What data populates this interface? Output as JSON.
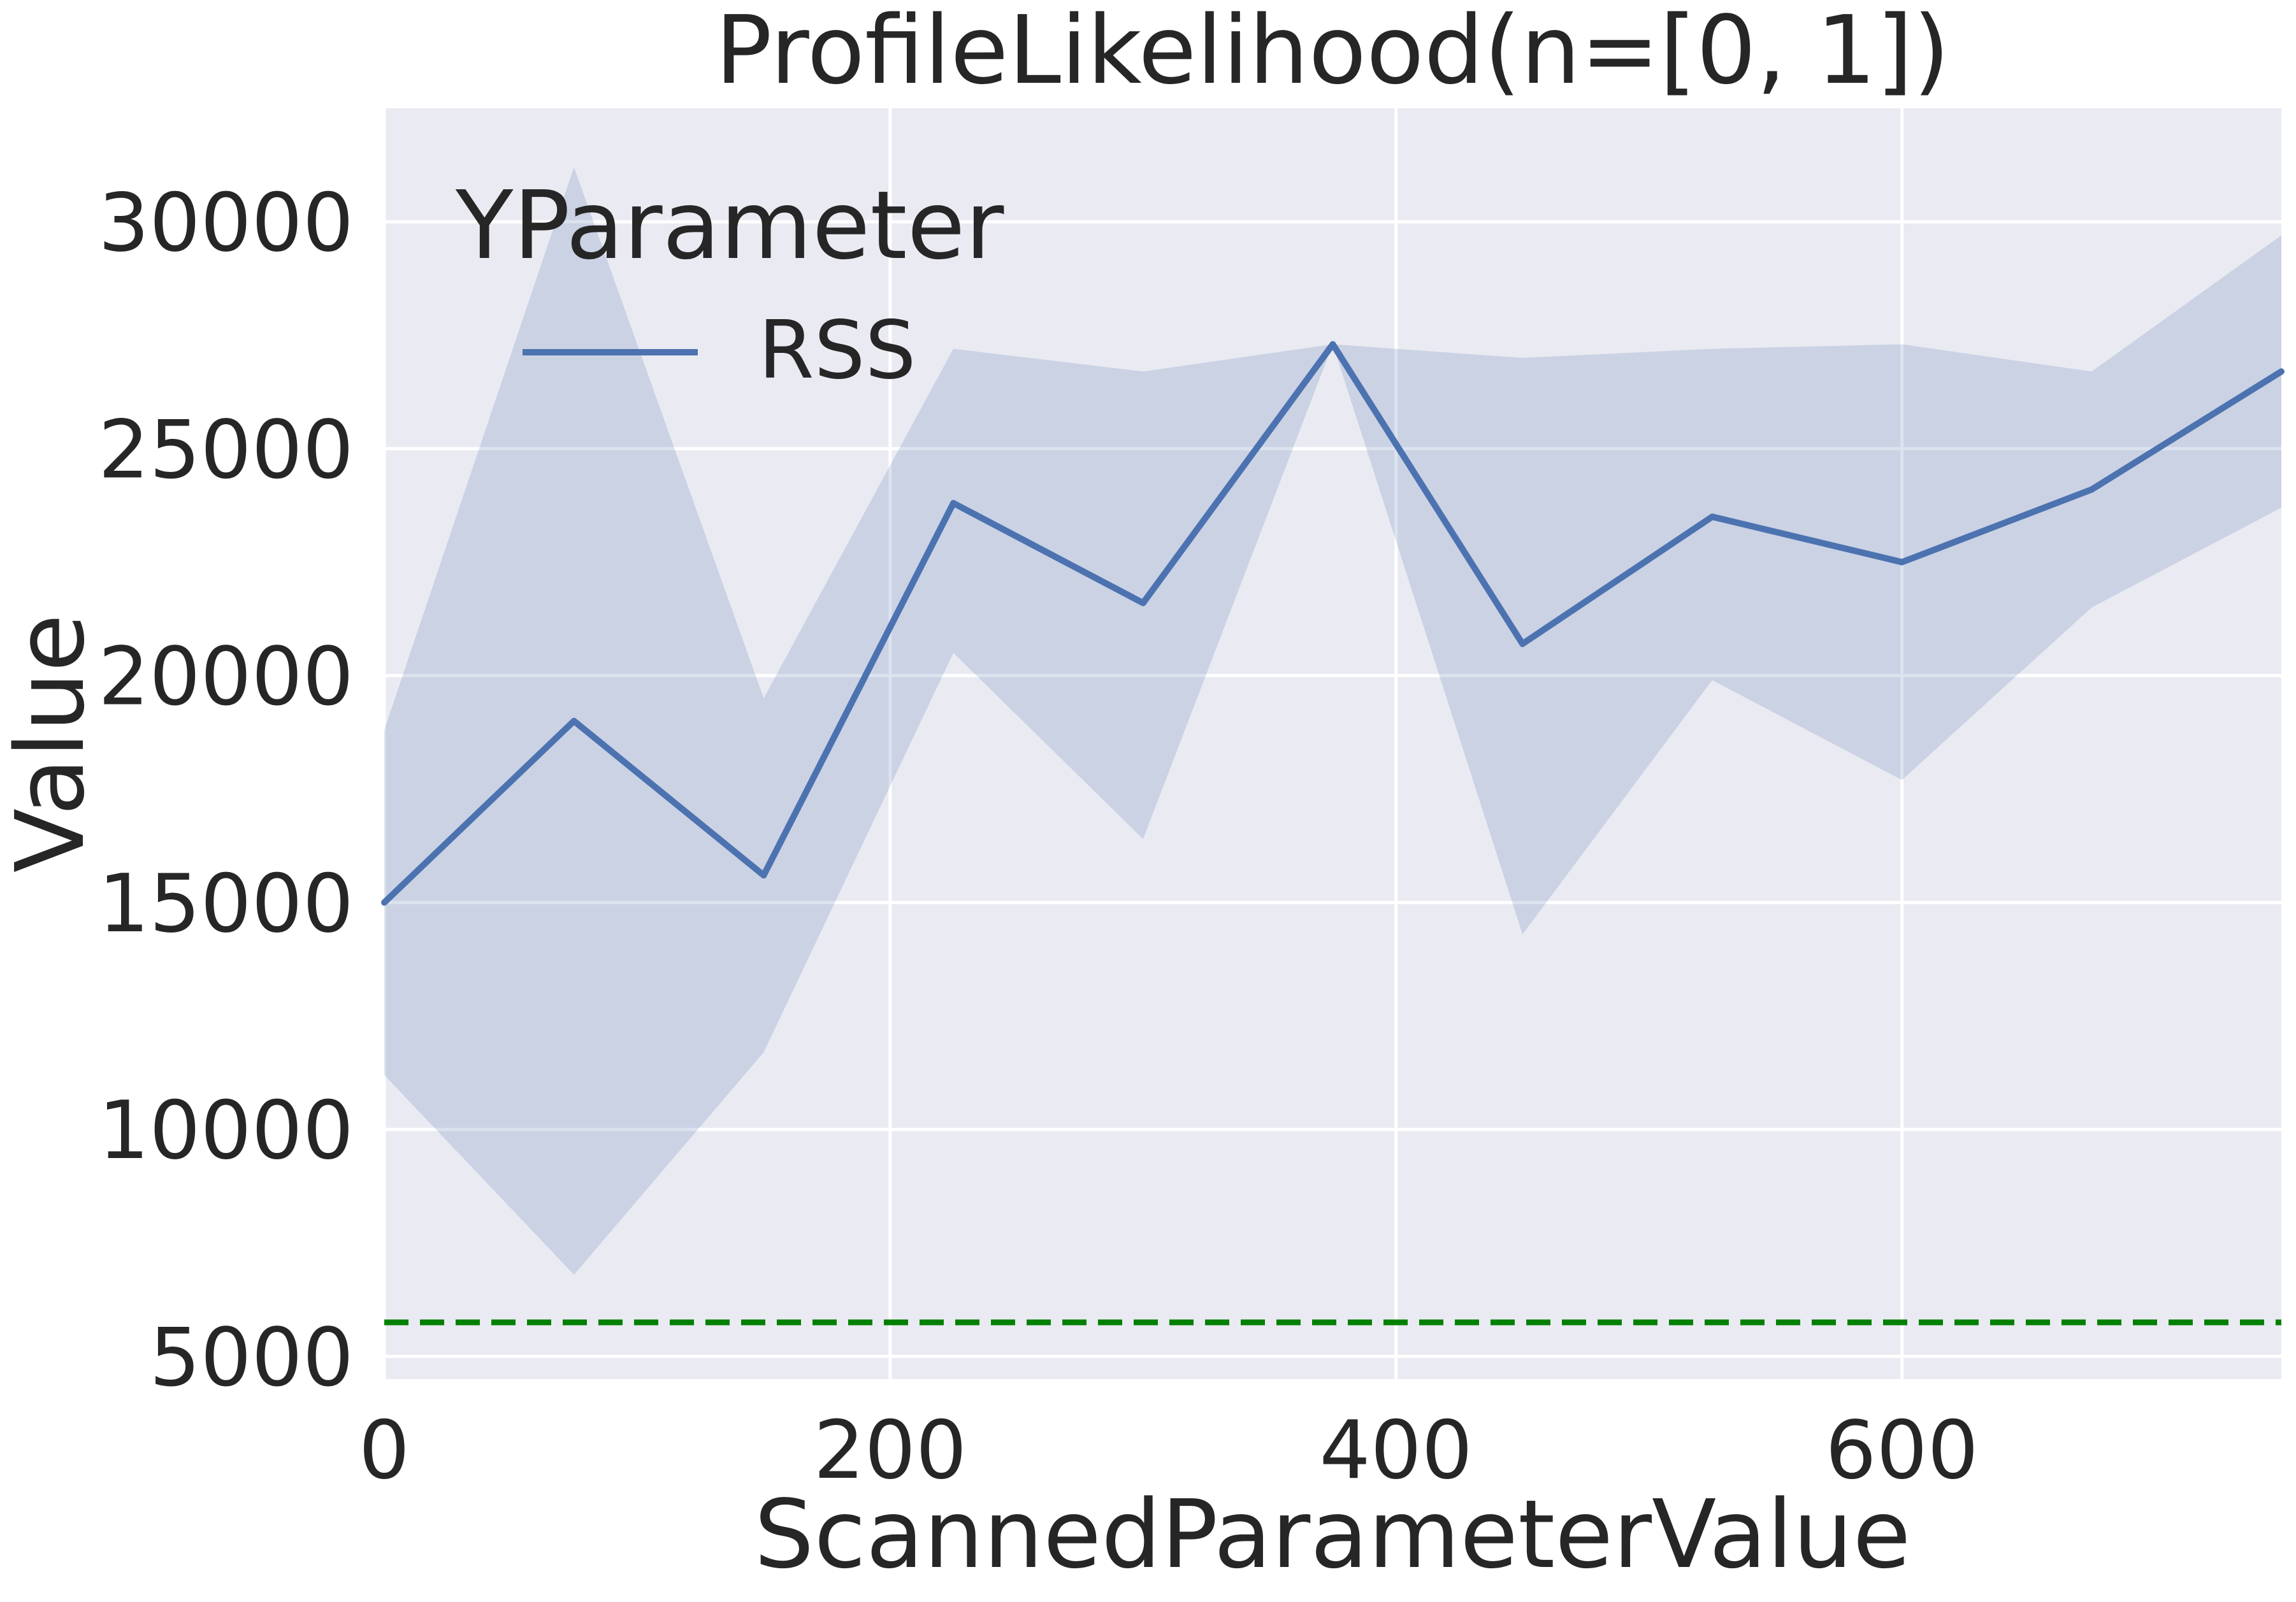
{
  "chart_data": {
    "type": "line",
    "title": "ProfileLikelihood(n=[0, 1])",
    "xlabel": "ScannedParameterValue",
    "ylabel": "Value",
    "xlim": [
      0,
      750
    ],
    "ylim": [
      4500,
      32500
    ],
    "x_ticks": [
      0,
      200,
      400,
      600
    ],
    "y_ticks": [
      5000,
      10000,
      15000,
      20000,
      25000,
      30000
    ],
    "x_tick_labels": [
      "0",
      "200",
      "400",
      "600"
    ],
    "y_tick_labels": [
      "5000",
      "10000",
      "15000",
      "20000",
      "25000",
      "30000"
    ],
    "grid": true,
    "legend": {
      "title": "YParameter",
      "placement": "top-left",
      "entries": [
        "RSS"
      ]
    },
    "series": [
      {
        "name": "RSS",
        "color": "#4c72b0",
        "x": [
          0,
          75,
          150,
          225,
          300,
          375,
          450,
          525,
          600,
          675,
          750
        ],
        "values": [
          15000,
          19000,
          15600,
          23800,
          21600,
          27300,
          20700,
          23500,
          22500,
          24100,
          26700
        ],
        "band_upper": [
          18800,
          31200,
          19500,
          27200,
          26700,
          27300,
          27000,
          27200,
          27300,
          26700,
          29700
        ],
        "band_lower": [
          11200,
          6800,
          11700,
          20500,
          16400,
          27300,
          14300,
          19900,
          17700,
          21500,
          23700
        ]
      }
    ],
    "reference_line": {
      "y": 5750,
      "color": "#008000",
      "style": "dashed"
    }
  }
}
